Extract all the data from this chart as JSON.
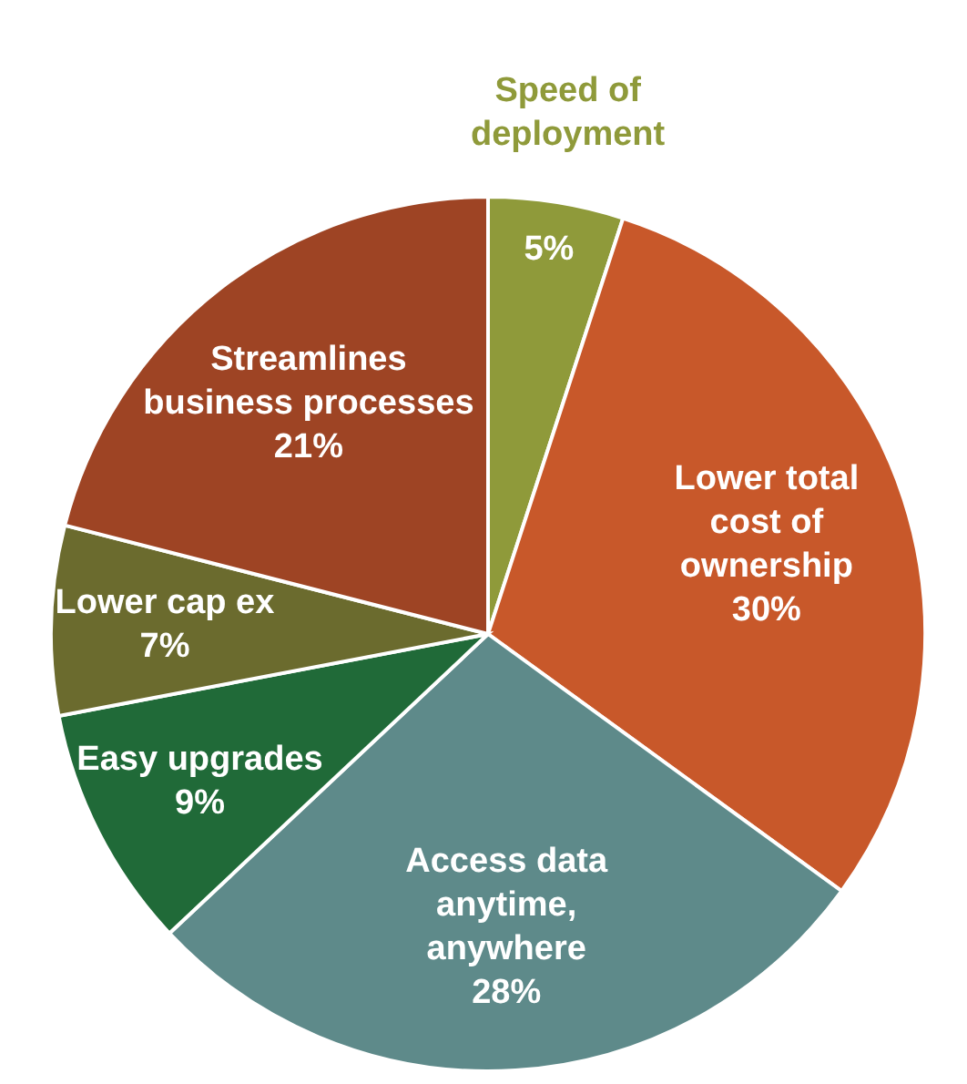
{
  "chart_data": {
    "type": "pie",
    "categories": [
      "Speed of deployment",
      "Lower total cost of ownership",
      "Access data anytime, anywhere",
      "Easy upgrades",
      "Lower cap ex",
      "Streamlines business processes"
    ],
    "values": [
      5,
      30,
      28,
      9,
      7,
      21
    ],
    "value_labels": [
      "5%",
      "30%",
      "28%",
      "9%",
      "7%",
      "21%"
    ],
    "colors": [
      "#8f9a3a",
      "#c8582a",
      "#5e8a8a",
      "#206a38",
      "#6b6b2e",
      "#9e4424"
    ]
  }
}
